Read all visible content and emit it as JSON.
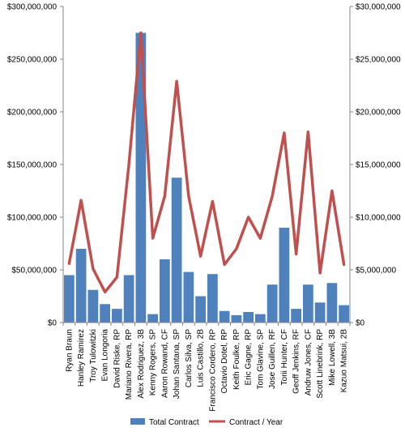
{
  "chart_data": {
    "type": "bar",
    "categories": [
      "Ryan Braun",
      "Hanley Ramirez",
      "Troy Tulowitzki",
      "Evan Longoria",
      "David Riske, RP",
      "Mariano Rivera, RP",
      "Alex Rodriguez, 3B",
      "Kenny Rogers, SP",
      "Aaron Rowand, CF",
      "Johan Santana, SP",
      "Carlos Silva, SP",
      "Luis Castillo, 2B",
      "Francisco Cordero, RP",
      "Octavio Dotel, RP",
      "Keith Foulke, RP",
      "Eric Gagne, RP",
      "Tom Glavine, SP",
      "Jose Guillen, RF",
      "Torii Hunter, CF",
      "Geoff Jenkins, RF",
      "Andruw Jones, CF",
      "Scott Linebrink, RP",
      "Mike Lowell, 3B",
      "Kazuo Matsui, 2B"
    ],
    "series": [
      {
        "name": "Total Contract",
        "type": "bar",
        "axis": "left",
        "color": "#4F81BD",
        "values": [
          45000000,
          70000000,
          31000000,
          17500000,
          13000000,
          45000000,
          275000000,
          8000000,
          60000000,
          137500000,
          48000000,
          25000000,
          46000000,
          11000000,
          7000000,
          10000000,
          8000000,
          36000000,
          90000000,
          13000000,
          36000000,
          19000000,
          37500000,
          16500000
        ]
      },
      {
        "name": "Contract / Year",
        "type": "line",
        "axis": "right",
        "color": "#C0504D",
        "values": [
          5600000,
          11600000,
          5100000,
          2900000,
          4300000,
          15000000,
          27500000,
          8000000,
          12000000,
          22900000,
          12000000,
          6300000,
          11500000,
          5500000,
          7000000,
          10000000,
          8000000,
          12000000,
          18000000,
          6500000,
          18100000,
          4700000,
          12500000,
          5500000
        ]
      }
    ],
    "left_axis": {
      "ylim": [
        0,
        300000000
      ],
      "ticks": [
        "$0",
        "$50,000,000",
        "$100,000,000",
        "$150,000,000",
        "$200,000,000",
        "$250,000,000",
        "$300,000,000"
      ]
    },
    "right_axis": {
      "ylim": [
        0,
        30000000
      ],
      "ticks": [
        "$0",
        "$5,000,000",
        "$10,000,000",
        "$15,000,000",
        "$20,000,000",
        "$25,000,000",
        "$30,000,000"
      ]
    },
    "grid": false,
    "legend": "bottom",
    "title": "",
    "xlabel": "",
    "ylabel": ""
  }
}
